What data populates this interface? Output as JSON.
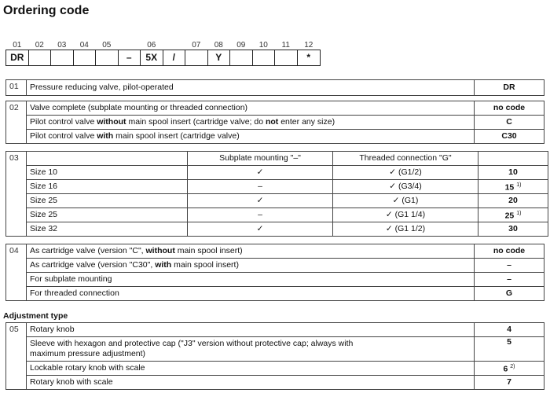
{
  "title": "Ordering code",
  "code_positions": [
    {
      "num": "01",
      "value": "DR"
    },
    {
      "num": "02",
      "value": ""
    },
    {
      "num": "03",
      "value": ""
    },
    {
      "num": "04",
      "value": ""
    },
    {
      "num": "05",
      "value": ""
    },
    {
      "num": "",
      "value": "–"
    },
    {
      "num": "06",
      "value": "5X"
    },
    {
      "num": "",
      "value": "/"
    },
    {
      "num": "07",
      "value": ""
    },
    {
      "num": "08",
      "value": "Y"
    },
    {
      "num": "09",
      "value": ""
    },
    {
      "num": "10",
      "value": ""
    },
    {
      "num": "11",
      "value": ""
    },
    {
      "num": "12",
      "value": "*"
    }
  ],
  "sections": [
    {
      "num": "01",
      "rows": [
        {
          "text": [
            {
              "t": "Pressure reducing valve, pilot-operated"
            }
          ],
          "code": "DR"
        }
      ]
    },
    {
      "num": "02",
      "rows": [
        {
          "text": [
            {
              "t": "Valve complete (subplate mounting or threaded connection)"
            }
          ],
          "code": "no code"
        },
        {
          "text": [
            {
              "t": "Pilot control valve "
            },
            {
              "t": "without",
              "b": true
            },
            {
              "t": " main spool insert (cartridge valve; do "
            },
            {
              "t": "not",
              "b": true
            },
            {
              "t": " enter any size)"
            }
          ],
          "code": "C"
        },
        {
          "text": [
            {
              "t": "Pilot control valve "
            },
            {
              "t": "with",
              "b": true
            },
            {
              "t": " main spool insert (cartridge valve)"
            }
          ],
          "code": "C30"
        }
      ]
    },
    {
      "num": "03",
      "header": [
        "",
        "Subplate mounting \"–\"",
        "Threaded connection \"G\"",
        ""
      ],
      "rows": [
        {
          "size": "Size 10",
          "subplate": "✓",
          "threaded": "✓ (G1/2)",
          "code": "10"
        },
        {
          "size": "Size 16",
          "subplate": "–",
          "threaded": "✓ (G3/4)",
          "code": "15",
          "note": "1)"
        },
        {
          "size": "Size 25",
          "subplate": "✓",
          "threaded": "✓ (G1)",
          "code": "20"
        },
        {
          "size": "Size 25",
          "subplate": "–",
          "threaded": "✓ (G1 1/4)",
          "code": "25",
          "note": "1)"
        },
        {
          "size": "Size 32",
          "subplate": "✓",
          "threaded": "✓ (G1 1/2)",
          "code": "30"
        }
      ]
    },
    {
      "num": "04",
      "rows": [
        {
          "text": [
            {
              "t": "As cartridge valve (version \"C\", "
            },
            {
              "t": "without",
              "b": true
            },
            {
              "t": " main spool insert)"
            }
          ],
          "code": "no code"
        },
        {
          "text": [
            {
              "t": "As cartridge valve (version \"C30\", "
            },
            {
              "t": "with",
              "b": true
            },
            {
              "t": " main spool insert)"
            }
          ],
          "code": "–"
        },
        {
          "text": [
            {
              "t": "For subplate mounting"
            }
          ],
          "code": "–"
        },
        {
          "text": [
            {
              "t": "For threaded connection"
            }
          ],
          "code": "G"
        }
      ]
    },
    {
      "subtitle": "Adjustment type",
      "num": "05",
      "rows": [
        {
          "text": [
            {
              "t": "Rotary knob"
            }
          ],
          "code": "4"
        },
        {
          "text": [
            {
              "t": "Sleeve with hexagon and protective cap (\"J3\" version without protective cap; always with maximum pressure adjustment)"
            }
          ],
          "code": "5"
        },
        {
          "text": [
            {
              "t": "Lockable rotary knob with scale"
            }
          ],
          "code": "6",
          "note": "2)"
        },
        {
          "text": [
            {
              "t": "Rotary knob with scale"
            }
          ],
          "code": "7"
        }
      ]
    }
  ]
}
